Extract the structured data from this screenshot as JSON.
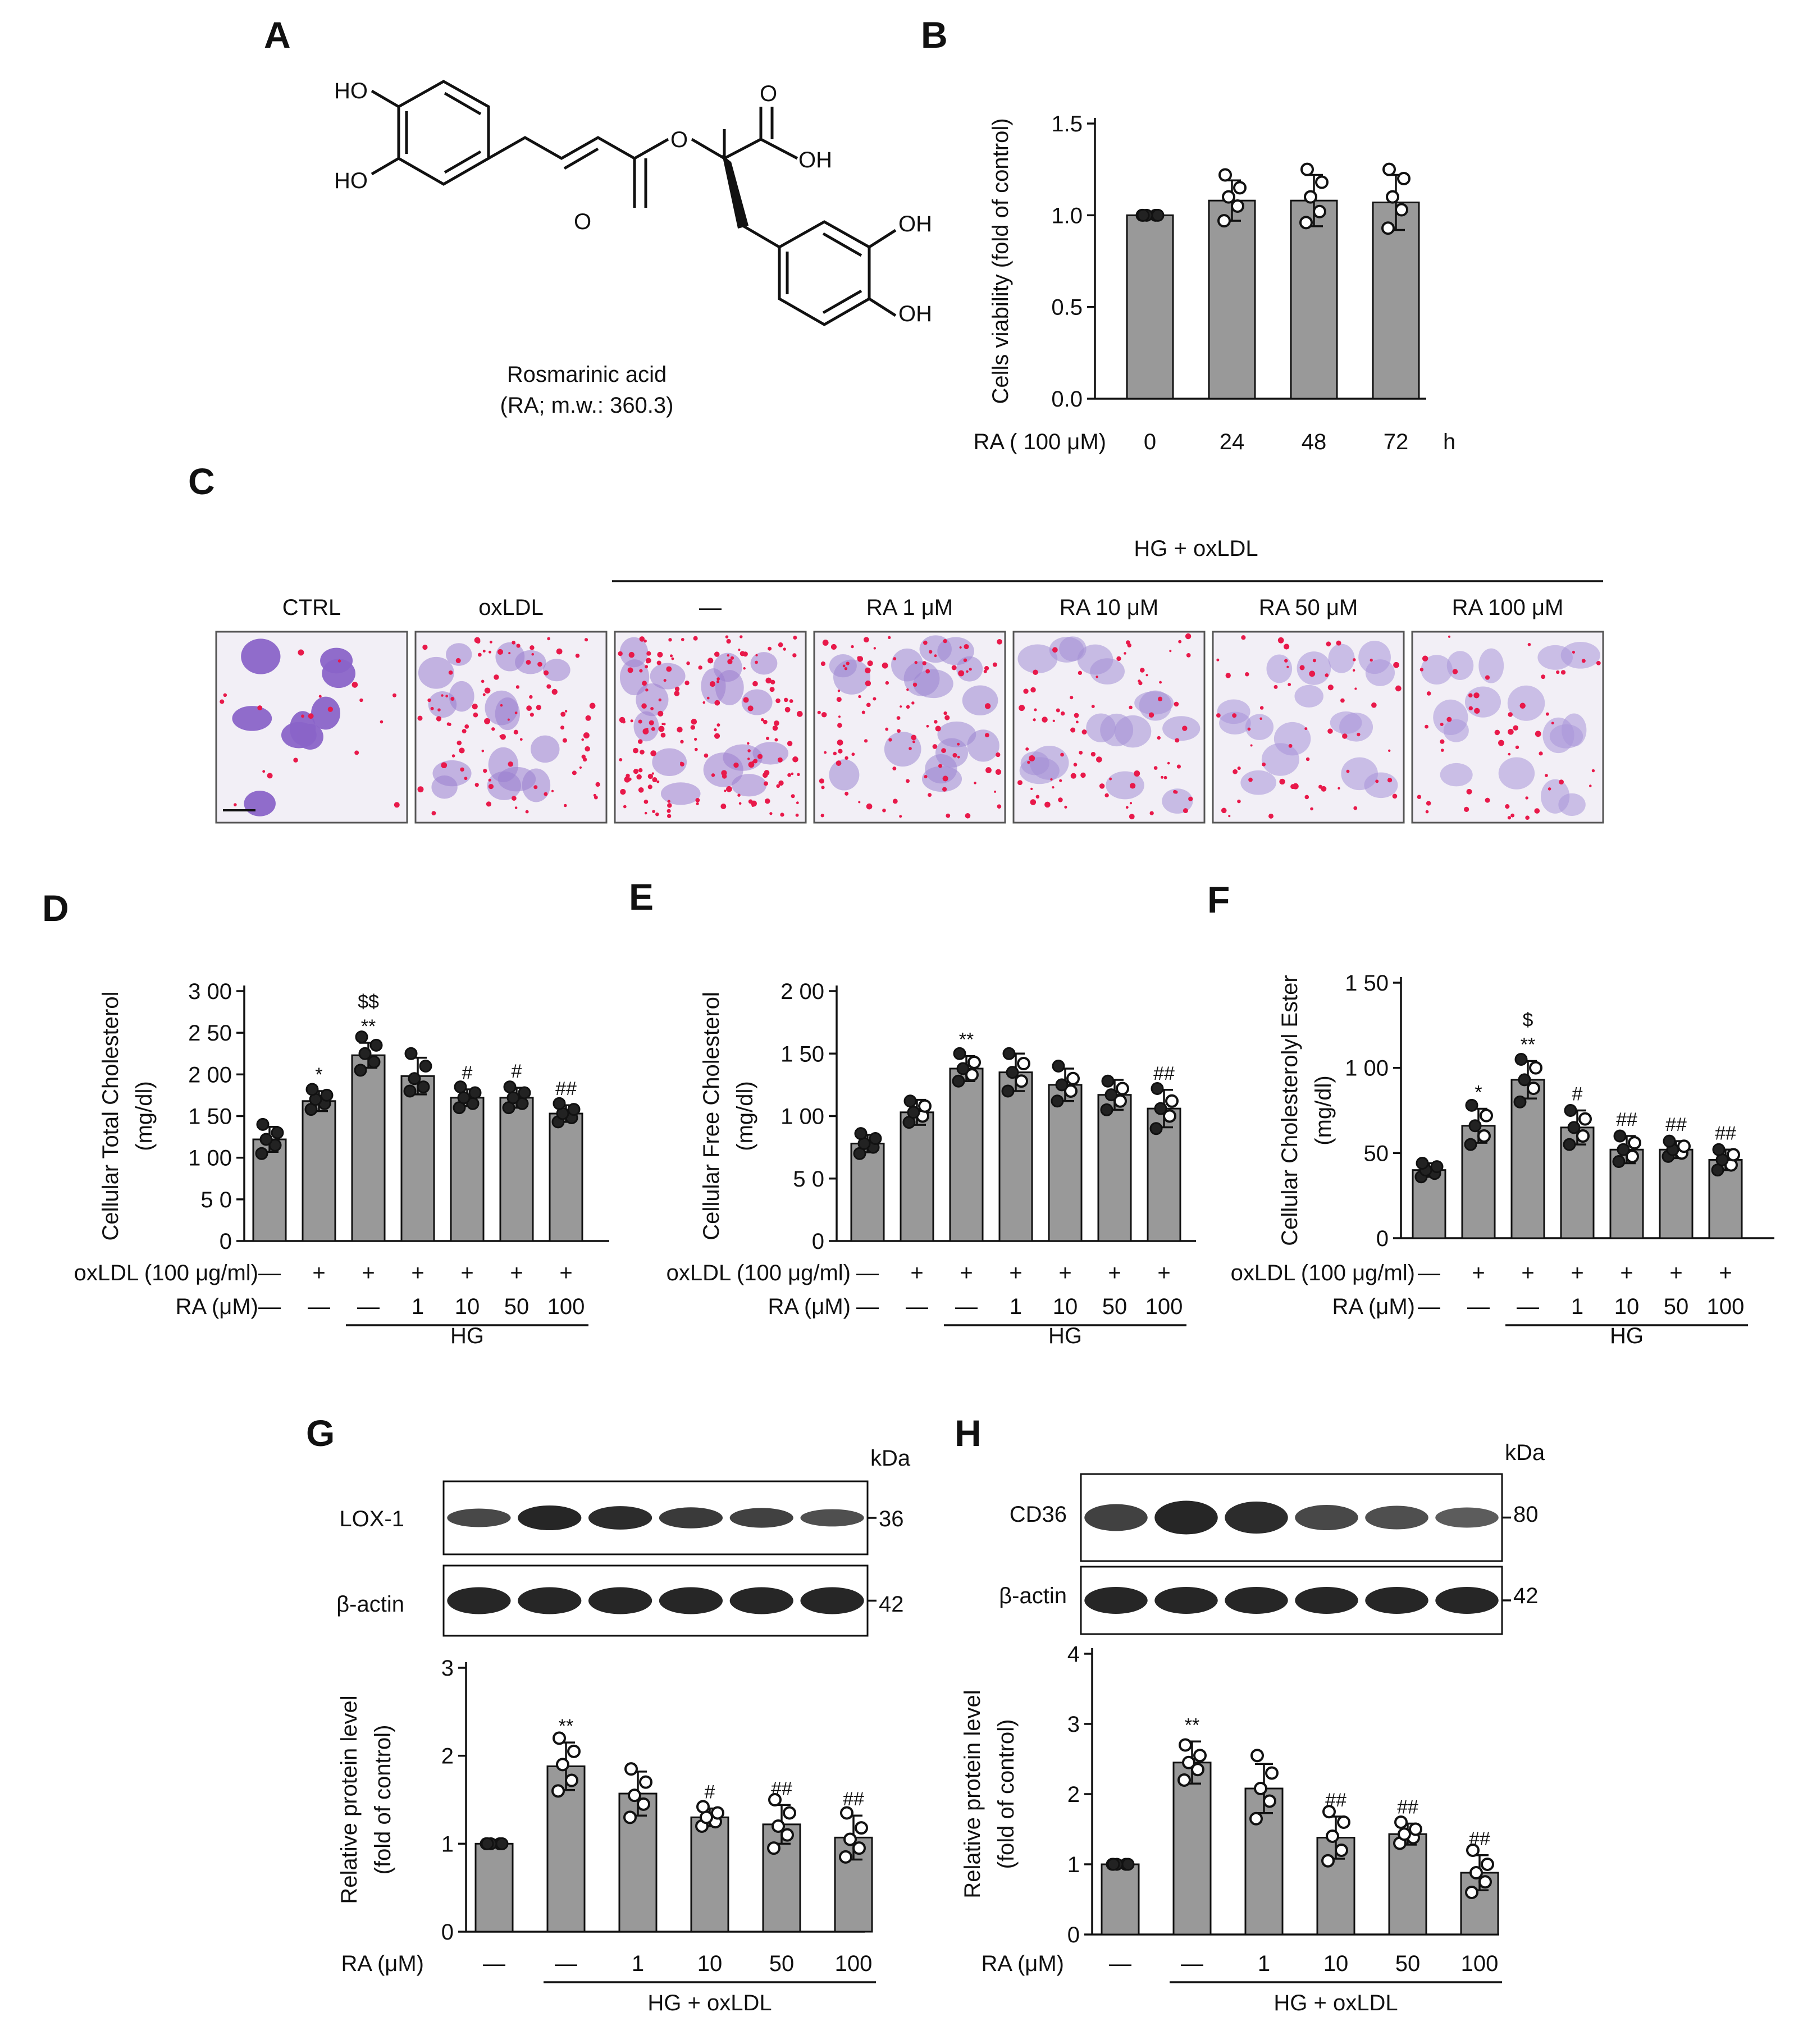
{
  "panels": {
    "a": {
      "letter": "A",
      "molecule": {
        "name": "Rosmarinic acid",
        "subtitle": "(RA; m.w.: 360.3)",
        "atoms": [
          "HO",
          "HO",
          "O",
          "O",
          "O",
          "OH",
          "OH",
          "OH"
        ]
      }
    },
    "b": {
      "letter": "B",
      "group_label": "RA ( 100 μM)",
      "unit_label": "h"
    },
    "c": {
      "letter": "C",
      "group_label": "HG + oxLDL",
      "images": [
        {
          "label": "CTRL",
          "density": 0.12,
          "purple": "#8a64c8"
        },
        {
          "label": "oxLDL",
          "density": 0.55,
          "purple": "#9b80d0"
        },
        {
          "label": "—",
          "density": 0.95,
          "purple": "#9c7fcf"
        },
        {
          "label": "RA 1 μM",
          "density": 0.6,
          "purple": "#9d86d2"
        },
        {
          "label": "RA 10 μM",
          "density": 0.45,
          "purple": "#a48fd6"
        },
        {
          "label": "RA 50 μM",
          "density": 0.35,
          "purple": "#a893d8"
        },
        {
          "label": "RA 100 μM",
          "density": 0.3,
          "purple": "#a995d8"
        }
      ]
    },
    "d": {
      "letter": "D"
    },
    "e": {
      "letter": "E"
    },
    "f": {
      "letter": "F"
    },
    "g": {
      "letter": "G",
      "kda": "kDa",
      "blots": [
        {
          "name": "LOX-1",
          "size": "36"
        },
        {
          "name": "β-actin",
          "size": "42"
        }
      ]
    },
    "h": {
      "letter": "H",
      "kda": "kDa",
      "blots": [
        {
          "name": "CD36",
          "size": "80"
        },
        {
          "name": "β-actin",
          "size": "42"
        }
      ]
    }
  },
  "chart_data": [
    {
      "id": "b",
      "type": "bar",
      "ylabel": "Cells viability (fold of control)",
      "ylim": [
        0,
        1.5
      ],
      "yticks": [
        0,
        0.5,
        1.0,
        1.5
      ],
      "ytick_labels": [
        "0.0",
        "0.5",
        "1.0",
        "1.5"
      ],
      "categories": [
        "0",
        "24",
        "48",
        "72"
      ],
      "values": [
        1.0,
        1.08,
        1.08,
        1.07
      ],
      "errors": [
        0.01,
        0.11,
        0.14,
        0.15
      ],
      "points": [
        [
          1,
          1,
          1,
          1,
          1
        ],
        [
          0.97,
          1.05,
          1.1,
          1.15,
          1.22
        ],
        [
          0.96,
          1.02,
          1.1,
          1.18,
          1.25
        ],
        [
          0.93,
          1.03,
          1.1,
          1.2,
          1.25
        ]
      ],
      "significance": [
        "",
        "",
        "",
        ""
      ]
    },
    {
      "id": "d",
      "type": "bar",
      "ylabel": "Cellular Total Cholesterol",
      "ylabel2": "(mg/dl)",
      "ylim": [
        0,
        300
      ],
      "yticks": [
        0,
        50,
        100,
        150,
        200,
        250,
        300
      ],
      "ytick_labels": [
        "0",
        "5 0",
        "1 00",
        "1 50",
        "2 00",
        "2 50",
        "3 00"
      ],
      "row_labels": [
        "oxLDL (100 μg/ml)",
        "RA (μM)"
      ],
      "rows": [
        [
          "—",
          "+",
          "+",
          "+",
          "+",
          "+",
          "+"
        ],
        [
          "—",
          "—",
          "—",
          "1",
          "10",
          "50",
          "100"
        ]
      ],
      "group_label": "HG",
      "group_from": 2,
      "values": [
        122,
        168,
        223,
        198,
        172,
        172,
        153
      ],
      "errors": [
        15,
        12,
        15,
        22,
        10,
        12,
        10
      ],
      "points": [
        [
          105,
          115,
          122,
          130,
          140
        ],
        [
          158,
          165,
          170,
          175,
          182
        ],
        [
          205,
          215,
          225,
          235,
          245
        ],
        [
          180,
          185,
          195,
          210,
          225
        ],
        [
          160,
          165,
          172,
          178,
          185
        ],
        [
          160,
          165,
          172,
          178,
          185
        ],
        [
          143,
          148,
          153,
          158,
          165
        ]
      ],
      "significance": [
        "",
        "*",
        "**",
        "",
        "#",
        "#",
        "##"
      ],
      "significance2": [
        "",
        "",
        "$$",
        "",
        "",
        "",
        ""
      ]
    },
    {
      "id": "e",
      "type": "bar",
      "ylabel": "Cellular Free Cholesterol",
      "ylabel2": "(mg/dl)",
      "ylim": [
        0,
        200
      ],
      "yticks": [
        0,
        50,
        100,
        150,
        200
      ],
      "ytick_labels": [
        "0",
        "5 0",
        "1 00",
        "1 50",
        "2 00"
      ],
      "row_labels": [
        "oxLDL (100 μg/ml)",
        "RA (μM)"
      ],
      "rows": [
        [
          "—",
          "+",
          "+",
          "+",
          "+",
          "+",
          "+"
        ],
        [
          "—",
          "—",
          "—",
          "1",
          "10",
          "50",
          "100"
        ]
      ],
      "group_label": "HG",
      "group_from": 2,
      "values": [
        78,
        103,
        138,
        135,
        125,
        117,
        106
      ],
      "errors": [
        7,
        10,
        10,
        15,
        13,
        12,
        15
      ],
      "points": [
        [
          70,
          75,
          78,
          82,
          86
        ],
        [
          95,
          100,
          103,
          108,
          112
        ],
        [
          128,
          133,
          138,
          143,
          150
        ],
        [
          120,
          128,
          135,
          142,
          150
        ],
        [
          112,
          120,
          125,
          130,
          140
        ],
        [
          105,
          112,
          117,
          122,
          128
        ],
        [
          90,
          100,
          106,
          112,
          122
        ]
      ],
      "significance": [
        "",
        "",
        "**",
        "",
        "",
        "",
        "##"
      ],
      "significance2": [
        "",
        "",
        "",
        "",
        "",
        "",
        ""
      ]
    },
    {
      "id": "f",
      "type": "bar",
      "ylabel": "Cellular  Cholesterolyl Ester",
      "ylabel2": "(mg/dl)",
      "ylim": [
        0,
        150
      ],
      "yticks": [
        0,
        50,
        100,
        150
      ],
      "ytick_labels": [
        "0",
        "50",
        "1 00",
        "1 50"
      ],
      "row_labels": [
        "oxLDL (100 μg/ml)",
        "RA (μM)"
      ],
      "rows": [
        [
          "—",
          "+",
          "+",
          "+",
          "+",
          "+",
          "+"
        ],
        [
          "—",
          "—",
          "—",
          "1",
          "10",
          "50",
          "100"
        ]
      ],
      "group_label": "HG",
      "group_from": 2,
      "values": [
        40,
        66,
        93,
        65,
        52,
        52,
        46
      ],
      "errors": [
        4,
        10,
        11,
        10,
        8,
        5,
        6
      ],
      "points": [
        [
          36,
          38,
          40,
          42,
          44
        ],
        [
          55,
          60,
          66,
          72,
          78
        ],
        [
          80,
          88,
          93,
          100,
          105
        ],
        [
          55,
          60,
          65,
          70,
          75
        ],
        [
          45,
          48,
          52,
          56,
          60
        ],
        [
          48,
          50,
          52,
          54,
          57
        ],
        [
          40,
          43,
          46,
          49,
          52
        ]
      ],
      "significance": [
        "",
        "*",
        "**",
        "#",
        "##",
        "##",
        "##"
      ],
      "significance2": [
        "",
        "",
        "$",
        "",
        "",
        "",
        ""
      ]
    },
    {
      "id": "g",
      "type": "bar",
      "ylabel": "Relative protein level",
      "ylabel2": "(fold of control)",
      "ylim": [
        0,
        3
      ],
      "yticks": [
        0,
        1,
        2,
        3
      ],
      "ytick_labels": [
        "0",
        "1",
        "2",
        "3"
      ],
      "row_labels": [
        "RA (μM)"
      ],
      "rows": [
        [
          "—",
          "—",
          "1",
          "10",
          "50",
          "100"
        ]
      ],
      "group_label": "HG + oxLDL",
      "group_from": 1,
      "values": [
        1.0,
        1.88,
        1.57,
        1.3,
        1.22,
        1.07
      ],
      "errors": [
        0.01,
        0.27,
        0.25,
        0.1,
        0.22,
        0.25
      ],
      "points": [
        [
          1,
          1,
          1,
          1,
          1
        ],
        [
          1.6,
          1.72,
          1.9,
          2.05,
          2.2
        ],
        [
          1.3,
          1.45,
          1.55,
          1.7,
          1.85
        ],
        [
          1.2,
          1.25,
          1.3,
          1.35,
          1.42
        ],
        [
          0.95,
          1.1,
          1.2,
          1.35,
          1.5
        ],
        [
          0.85,
          0.95,
          1.05,
          1.18,
          1.35
        ]
      ],
      "significance": [
        "",
        "**",
        "",
        "#",
        "##",
        "##"
      ]
    },
    {
      "id": "h",
      "type": "bar",
      "ylabel": "Relative protein level",
      "ylabel2": "(fold of control)",
      "ylim": [
        0,
        4
      ],
      "yticks": [
        0,
        1,
        2,
        3,
        4
      ],
      "ytick_labels": [
        "0",
        "1",
        "2",
        "3",
        "4"
      ],
      "row_labels": [
        "RA (μM)"
      ],
      "rows": [
        [
          "—",
          "—",
          "1",
          "10",
          "50",
          "100"
        ]
      ],
      "group_label": "HG + oxLDL",
      "group_from": 1,
      "values": [
        1.0,
        2.45,
        2.08,
        1.38,
        1.43,
        0.88
      ],
      "errors": [
        0.01,
        0.3,
        0.35,
        0.3,
        0.15,
        0.25
      ],
      "points": [
        [
          1,
          1,
          1,
          1,
          1
        ],
        [
          2.2,
          2.35,
          2.45,
          2.55,
          2.7
        ],
        [
          1.65,
          1.9,
          2.08,
          2.3,
          2.55
        ],
        [
          1.05,
          1.2,
          1.4,
          1.6,
          1.75
        ],
        [
          1.3,
          1.38,
          1.43,
          1.5,
          1.6
        ],
        [
          0.6,
          0.75,
          0.88,
          1.0,
          1.2
        ]
      ],
      "significance": [
        "",
        "**",
        "",
        "##",
        "##",
        "##"
      ]
    }
  ]
}
